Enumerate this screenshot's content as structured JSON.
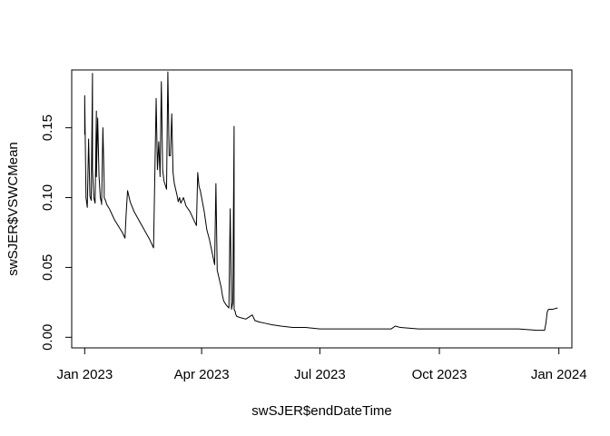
{
  "chart_data": {
    "type": "line",
    "title": "",
    "xlabel": "swSJER$endDateTime",
    "ylabel": "swSJER$VSWCMean",
    "x_ticks": [
      {
        "date": "2023-01-01",
        "label": "Jan 2023"
      },
      {
        "date": "2023-04-01",
        "label": "Apr 2023"
      },
      {
        "date": "2023-07-01",
        "label": "Jul 2023"
      },
      {
        "date": "2023-10-01",
        "label": "Oct 2023"
      },
      {
        "date": "2024-01-01",
        "label": "Jan 2024"
      }
    ],
    "y_ticks": [
      {
        "value": 0.0,
        "label": "0.00"
      },
      {
        "value": 0.05,
        "label": "0.05"
      },
      {
        "value": 0.1,
        "label": "0.10"
      },
      {
        "value": 0.15,
        "label": "0.15"
      }
    ],
    "xlim": [
      "2022-12-22",
      "2024-01-11"
    ],
    "ylim": [
      -0.0076,
      0.1914
    ],
    "grid": false,
    "line_color": "#000000",
    "series": [
      {
        "x": [
          "2023-01-01",
          "2023-01-01",
          "2023-01-02",
          "2023-01-02",
          "2023-01-03",
          "2023-01-04",
          "2023-01-05",
          "2023-01-06",
          "2023-01-07",
          "2023-01-07",
          "2023-01-08",
          "2023-01-09",
          "2023-01-10",
          "2023-01-10",
          "2023-01-11",
          "2023-01-12",
          "2023-01-13",
          "2023-01-14",
          "2023-01-14",
          "2023-01-15",
          "2023-01-16",
          "2023-01-16",
          "2023-01-17",
          "2023-01-18",
          "2023-01-20",
          "2023-01-22",
          "2023-01-24",
          "2023-01-26",
          "2023-01-28",
          "2023-01-30",
          "2023-02-01",
          "2023-02-02",
          "2023-02-03",
          "2023-02-05",
          "2023-02-08",
          "2023-02-11",
          "2023-02-14",
          "2023-02-17",
          "2023-02-20",
          "2023-02-22",
          "2023-02-23",
          "2023-02-25",
          "2023-02-26",
          "2023-02-27",
          "2023-02-28",
          "2023-03-01",
          "2023-03-02",
          "2023-03-03",
          "2023-03-05",
          "2023-03-06",
          "2023-03-07",
          "2023-03-08",
          "2023-03-09",
          "2023-03-10",
          "2023-03-11",
          "2023-03-13",
          "2023-03-14",
          "2023-03-15",
          "2023-03-16",
          "2023-03-18",
          "2023-03-20",
          "2023-03-23",
          "2023-03-26",
          "2023-03-28",
          "2023-03-29",
          "2023-03-30",
          "2023-03-31",
          "2023-04-01",
          "2023-04-03",
          "2023-04-05",
          "2023-04-07",
          "2023-04-09",
          "2023-04-11",
          "2023-04-12",
          "2023-04-13",
          "2023-04-14",
          "2023-04-15",
          "2023-04-16",
          "2023-04-17",
          "2023-04-18",
          "2023-04-20",
          "2023-04-22",
          "2023-04-23",
          "2023-04-24",
          "2023-04-24",
          "2023-04-25",
          "2023-04-26",
          "2023-04-26",
          "2023-04-27",
          "2023-04-27",
          "2023-04-28",
          "2023-05-01",
          "2023-05-05",
          "2023-05-10",
          "2023-05-12",
          "2023-05-15",
          "2023-05-20",
          "2023-05-25",
          "2023-06-01",
          "2023-06-10",
          "2023-06-20",
          "2023-07-01",
          "2023-07-15",
          "2023-08-01",
          "2023-08-15",
          "2023-08-25",
          "2023-08-28",
          "2023-09-01",
          "2023-09-15",
          "2023-10-01",
          "2023-10-15",
          "2023-11-01",
          "2023-11-15",
          "2023-12-01",
          "2023-12-15",
          "2023-12-21",
          "2023-12-22",
          "2023-12-23",
          "2023-12-24",
          "2023-12-27",
          "2023-12-31"
        ],
        "y": [
          0.145,
          0.173,
          0.101,
          0.1,
          0.093,
          0.142,
          0.101,
          0.098,
          0.189,
          0.12,
          0.1,
          0.096,
          0.162,
          0.115,
          0.157,
          0.116,
          0.1,
          0.096,
          0.095,
          0.15,
          0.11,
          0.1,
          0.098,
          0.095,
          0.092,
          0.088,
          0.084,
          0.081,
          0.078,
          0.075,
          0.071,
          0.09,
          0.105,
          0.097,
          0.09,
          0.085,
          0.08,
          0.075,
          0.07,
          0.066,
          0.064,
          0.171,
          0.12,
          0.14,
          0.115,
          0.183,
          0.12,
          0.112,
          0.106,
          0.19,
          0.13,
          0.13,
          0.16,
          0.118,
          0.11,
          0.102,
          0.097,
          0.1,
          0.096,
          0.1,
          0.094,
          0.09,
          0.084,
          0.08,
          0.118,
          0.108,
          0.105,
          0.1,
          0.09,
          0.077,
          0.07,
          0.061,
          0.052,
          0.11,
          0.048,
          0.044,
          0.04,
          0.036,
          0.03,
          0.026,
          0.023,
          0.021,
          0.092,
          0.022,
          0.02,
          0.025,
          0.151,
          0.02,
          0.018,
          0.017,
          0.015,
          0.014,
          0.013,
          0.016,
          0.012,
          0.011,
          0.01,
          0.009,
          0.008,
          0.007,
          0.007,
          0.006,
          0.006,
          0.006,
          0.006,
          0.006,
          0.008,
          0.007,
          0.006,
          0.006,
          0.006,
          0.006,
          0.006,
          0.006,
          0.005,
          0.005,
          0.01,
          0.018,
          0.02,
          0.02,
          0.021
        ]
      }
    ]
  }
}
